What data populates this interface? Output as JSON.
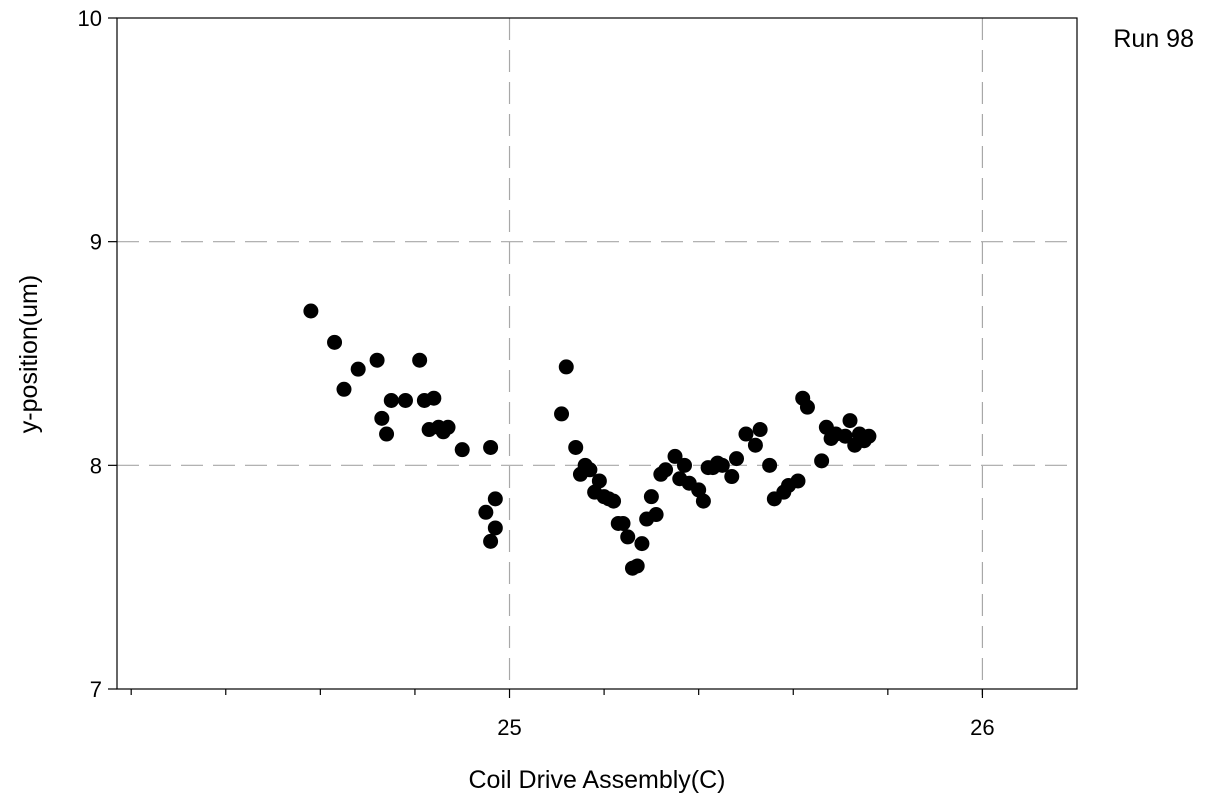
{
  "chart_data": {
    "type": "scatter",
    "xlabel": "Coil Drive Assembly(C)",
    "ylabel": "y-position(um)",
    "annotation": "Run 98",
    "xlim": [
      24.17,
      26.2
    ],
    "ylim": [
      7,
      10
    ],
    "x_ticks": [
      25,
      26
    ],
    "x_tick_labels": [
      "25",
      "26"
    ],
    "x_minor_ticks": [
      24.2,
      24.4,
      24.6,
      24.8,
      25.2,
      25.4,
      25.6,
      25.8,
      26.0
    ],
    "y_ticks": [
      7,
      8,
      9,
      10
    ],
    "y_tick_labels": [
      "7",
      "8",
      "9",
      "10"
    ],
    "grid": true,
    "grid_style": "dashed",
    "marker_color": "#000000",
    "series": [
      {
        "points": [
          [
            24.58,
            8.69
          ],
          [
            24.63,
            8.55
          ],
          [
            24.65,
            8.34
          ],
          [
            24.68,
            8.43
          ],
          [
            24.72,
            8.47
          ],
          [
            24.73,
            8.21
          ],
          [
            24.74,
            8.14
          ],
          [
            24.75,
            8.29
          ],
          [
            24.78,
            8.29
          ],
          [
            24.81,
            8.47
          ],
          [
            24.82,
            8.29
          ],
          [
            24.83,
            8.16
          ],
          [
            24.84,
            8.3
          ],
          [
            24.85,
            8.17
          ],
          [
            24.86,
            8.15
          ],
          [
            24.87,
            8.17
          ],
          [
            24.9,
            8.07
          ],
          [
            24.95,
            7.79
          ],
          [
            24.96,
            7.66
          ],
          [
            24.96,
            8.08
          ],
          [
            24.97,
            7.72
          ],
          [
            24.97,
            7.85
          ],
          [
            25.11,
            8.23
          ],
          [
            25.12,
            8.44
          ],
          [
            25.14,
            8.08
          ],
          [
            25.15,
            7.96
          ],
          [
            25.16,
            8.0
          ],
          [
            25.17,
            7.98
          ],
          [
            25.18,
            7.88
          ],
          [
            25.19,
            7.93
          ],
          [
            25.2,
            7.86
          ],
          [
            25.21,
            7.85
          ],
          [
            25.22,
            7.84
          ],
          [
            25.23,
            7.74
          ],
          [
            25.24,
            7.74
          ],
          [
            25.25,
            7.68
          ],
          [
            25.26,
            7.54
          ],
          [
            25.27,
            7.55
          ],
          [
            25.28,
            7.65
          ],
          [
            25.29,
            7.76
          ],
          [
            25.3,
            7.86
          ],
          [
            25.31,
            7.78
          ],
          [
            25.32,
            7.96
          ],
          [
            25.33,
            7.98
          ],
          [
            25.35,
            8.04
          ],
          [
            25.36,
            7.94
          ],
          [
            25.37,
            8.0
          ],
          [
            25.38,
            7.92
          ],
          [
            25.4,
            7.89
          ],
          [
            25.41,
            7.84
          ],
          [
            25.42,
            7.99
          ],
          [
            25.43,
            7.99
          ],
          [
            25.44,
            8.01
          ],
          [
            25.45,
            8.0
          ],
          [
            25.47,
            7.95
          ],
          [
            25.48,
            8.03
          ],
          [
            25.5,
            8.14
          ],
          [
            25.52,
            8.09
          ],
          [
            25.53,
            8.16
          ],
          [
            25.55,
            8.0
          ],
          [
            25.56,
            7.85
          ],
          [
            25.58,
            7.88
          ],
          [
            25.59,
            7.91
          ],
          [
            25.61,
            7.93
          ],
          [
            25.62,
            8.3
          ],
          [
            25.63,
            8.26
          ],
          [
            25.66,
            8.02
          ],
          [
            25.67,
            8.17
          ],
          [
            25.68,
            8.12
          ],
          [
            25.69,
            8.14
          ],
          [
            25.71,
            8.13
          ],
          [
            25.72,
            8.2
          ],
          [
            25.73,
            8.09
          ],
          [
            25.74,
            8.14
          ],
          [
            25.75,
            8.11
          ],
          [
            25.76,
            8.13
          ]
        ]
      }
    ]
  }
}
